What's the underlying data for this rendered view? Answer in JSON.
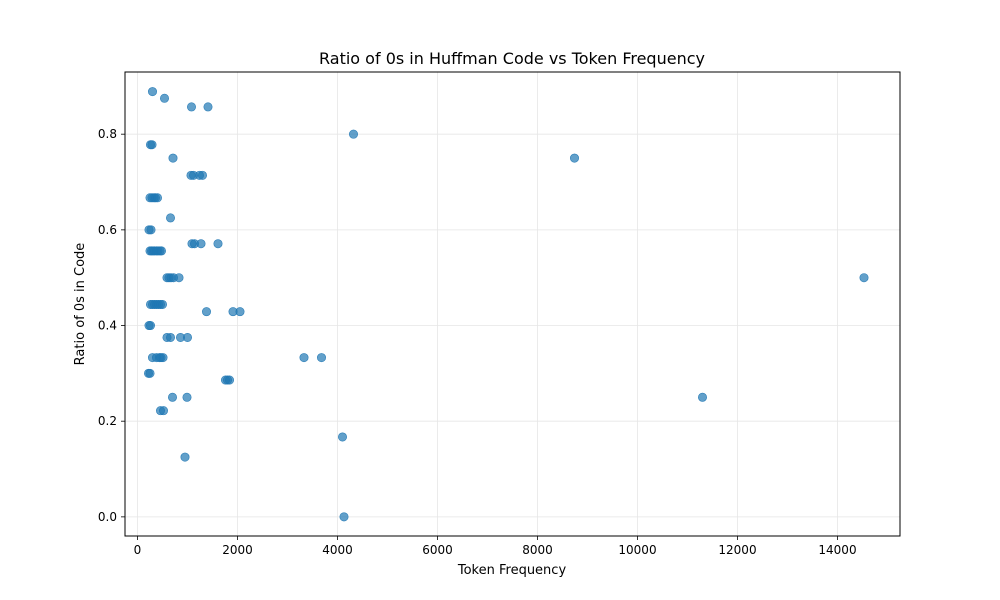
{
  "chart_data": {
    "type": "scatter",
    "title": "Ratio of 0s in Huffman Code vs Token Frequency",
    "xlabel": "Token Frequency",
    "ylabel": "Ratio of 0s in Code",
    "xlim": [
      -250,
      15250
    ],
    "ylim": [
      -0.04,
      0.93
    ],
    "xticks": [
      0,
      2000,
      4000,
      6000,
      8000,
      10000,
      12000,
      14000
    ],
    "yticks": [
      0.0,
      0.2,
      0.4,
      0.6,
      0.8
    ],
    "ytick_labels": [
      "0.0",
      "0.2",
      "0.4",
      "0.6",
      "0.8"
    ],
    "grid": true,
    "marker_color": "#1f77b4",
    "marker_alpha": 0.7,
    "points": [
      {
        "x": 300,
        "y": 0.889
      },
      {
        "x": 540,
        "y": 0.875
      },
      {
        "x": 1080,
        "y": 0.857
      },
      {
        "x": 1410,
        "y": 0.857
      },
      {
        "x": 4320,
        "y": 0.8
      },
      {
        "x": 8740,
        "y": 0.75
      },
      {
        "x": 710,
        "y": 0.75
      },
      {
        "x": 260,
        "y": 0.778
      },
      {
        "x": 290,
        "y": 0.778
      },
      {
        "x": 1070,
        "y": 0.714
      },
      {
        "x": 1120,
        "y": 0.714
      },
      {
        "x": 1240,
        "y": 0.714
      },
      {
        "x": 1300,
        "y": 0.714
      },
      {
        "x": 250,
        "y": 0.667
      },
      {
        "x": 290,
        "y": 0.667
      },
      {
        "x": 330,
        "y": 0.667
      },
      {
        "x": 360,
        "y": 0.667
      },
      {
        "x": 400,
        "y": 0.667
      },
      {
        "x": 660,
        "y": 0.625
      },
      {
        "x": 230,
        "y": 0.6
      },
      {
        "x": 270,
        "y": 0.6
      },
      {
        "x": 1090,
        "y": 0.571
      },
      {
        "x": 1140,
        "y": 0.571
      },
      {
        "x": 1270,
        "y": 0.571
      },
      {
        "x": 1610,
        "y": 0.571
      },
      {
        "x": 250,
        "y": 0.556
      },
      {
        "x": 280,
        "y": 0.556
      },
      {
        "x": 310,
        "y": 0.556
      },
      {
        "x": 340,
        "y": 0.556
      },
      {
        "x": 380,
        "y": 0.556
      },
      {
        "x": 410,
        "y": 0.556
      },
      {
        "x": 450,
        "y": 0.556
      },
      {
        "x": 480,
        "y": 0.556
      },
      {
        "x": 590,
        "y": 0.5
      },
      {
        "x": 630,
        "y": 0.5
      },
      {
        "x": 670,
        "y": 0.5
      },
      {
        "x": 720,
        "y": 0.5
      },
      {
        "x": 830,
        "y": 0.5
      },
      {
        "x": 14530,
        "y": 0.5
      },
      {
        "x": 260,
        "y": 0.444
      },
      {
        "x": 300,
        "y": 0.444
      },
      {
        "x": 340,
        "y": 0.444
      },
      {
        "x": 380,
        "y": 0.444
      },
      {
        "x": 420,
        "y": 0.444
      },
      {
        "x": 460,
        "y": 0.444
      },
      {
        "x": 500,
        "y": 0.444
      },
      {
        "x": 1380,
        "y": 0.429
      },
      {
        "x": 1910,
        "y": 0.429
      },
      {
        "x": 2050,
        "y": 0.429
      },
      {
        "x": 230,
        "y": 0.4
      },
      {
        "x": 260,
        "y": 0.4
      },
      {
        "x": 590,
        "y": 0.375
      },
      {
        "x": 660,
        "y": 0.375
      },
      {
        "x": 860,
        "y": 0.375
      },
      {
        "x": 1000,
        "y": 0.375
      },
      {
        "x": 300,
        "y": 0.333
      },
      {
        "x": 380,
        "y": 0.333
      },
      {
        "x": 440,
        "y": 0.333
      },
      {
        "x": 470,
        "y": 0.333
      },
      {
        "x": 510,
        "y": 0.333
      },
      {
        "x": 3330,
        "y": 0.333
      },
      {
        "x": 3680,
        "y": 0.333
      },
      {
        "x": 220,
        "y": 0.3
      },
      {
        "x": 250,
        "y": 0.3
      },
      {
        "x": 1760,
        "y": 0.286
      },
      {
        "x": 1800,
        "y": 0.286
      },
      {
        "x": 1840,
        "y": 0.286
      },
      {
        "x": 700,
        "y": 0.25
      },
      {
        "x": 990,
        "y": 0.25
      },
      {
        "x": 11300,
        "y": 0.25
      },
      {
        "x": 460,
        "y": 0.222
      },
      {
        "x": 520,
        "y": 0.222
      },
      {
        "x": 4100,
        "y": 0.167
      },
      {
        "x": 950,
        "y": 0.125
      },
      {
        "x": 4130,
        "y": 0.0
      }
    ]
  }
}
